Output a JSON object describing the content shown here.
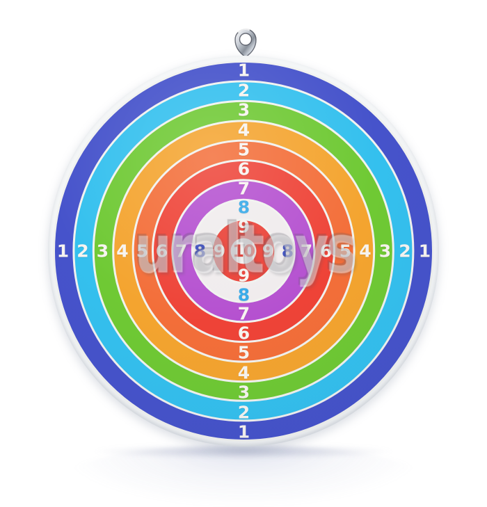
{
  "watermark": {
    "text": "uraltoys"
  },
  "board": {
    "rim_color": "#f4f6f7",
    "separator_color": "#f1f2ef",
    "rings": [
      {
        "value": "1",
        "color": "#4653cb",
        "number_color": "#f7f4f0"
      },
      {
        "value": "2",
        "color": "#34c0ee",
        "number_color": "#f7f4f0"
      },
      {
        "value": "3",
        "color": "#6fc934",
        "number_color": "#f7f4f0"
      },
      {
        "value": "4",
        "color": "#f4a42f",
        "number_color": "#f7f4f0"
      },
      {
        "value": "5",
        "color": "#f36e39",
        "number_color": "#f7f4f0"
      },
      {
        "value": "6",
        "color": "#ee4337",
        "number_color": "#f7f4f0"
      },
      {
        "value": "7",
        "color": "#b551d0",
        "number_color": "#f7f4f0"
      },
      {
        "value": "8",
        "color": "#f0eced",
        "number_color": "#35a9e8",
        "number_color_sides": "#3c4fc6"
      },
      {
        "value": "9",
        "color": "#ea4238",
        "number_color": "#f7f4f0"
      }
    ],
    "bullseye": {
      "value": "10",
      "color": "#f3f0ef",
      "number_color": "#e03a31"
    }
  },
  "icons": {
    "eyelet": "metal-hanging-eyelet"
  }
}
